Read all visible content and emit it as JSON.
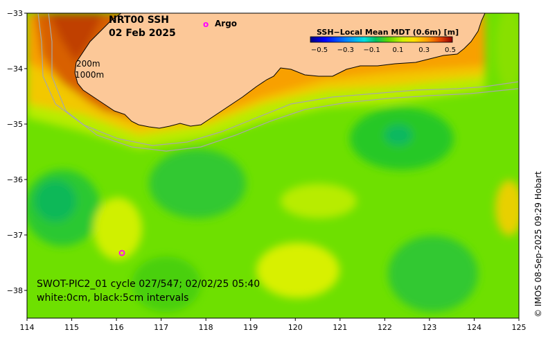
{
  "map": {
    "title_line1": "NRT00 SSH",
    "title_line2": "02 Feb 2025",
    "argo_label": "Argo",
    "argo_marker": "o",
    "isobath_200": "200m",
    "isobath_1000": "1000m",
    "caption_line1": "SWOT-PIC2_01 cycle 027/547; 02/02/25 05:40",
    "caption_line2": "white:0cm, black:5cm intervals",
    "credit": "© IMOS 08-Sep-2025 09:29 Hobart",
    "x_ticks": [
      "114",
      "115",
      "116",
      "117",
      "118",
      "119",
      "120",
      "121",
      "122",
      "123",
      "124",
      "125"
    ],
    "y_ticks": [
      "−33",
      "−34",
      "−35",
      "−36",
      "−37",
      "−38"
    ],
    "extent": {
      "lon_min": 114,
      "lon_max": 125,
      "lat_min": -38.5,
      "lat_max": -33
    },
    "argo_floats": [
      {
        "lon": 116.1,
        "lat": -37.35
      }
    ],
    "colorbar": {
      "title": "SSH−Local Mean MDT (0.6m) [m]",
      "tick_labels": [
        "−0.5",
        "−0.3",
        "−0.1",
        "0.1",
        "0.3",
        "0.5"
      ],
      "colors": [
        "#00007f",
        "#0000ff",
        "#0080ff",
        "#00e0e0",
        "#00c060",
        "#40d000",
        "#a0e000",
        "#f0f000",
        "#ffc000",
        "#ff8000",
        "#e04000",
        "#900000"
      ]
    },
    "colors": {
      "land": "#fcc898",
      "ocean_base": "#6ee000",
      "argo": "#ff00ff"
    }
  }
}
